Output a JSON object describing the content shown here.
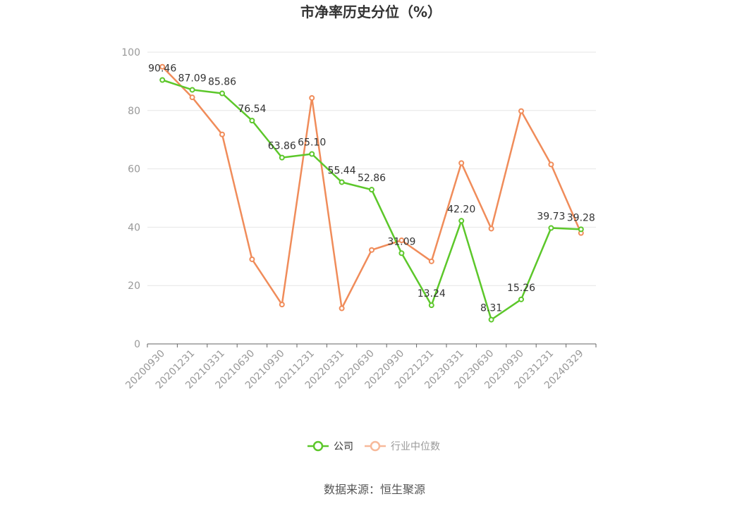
{
  "chart_data": {
    "type": "line",
    "title": "市净率历史分位（%）",
    "source": "数据来源：恒生聚源",
    "categories": [
      "20200930",
      "20201231",
      "20210331",
      "20210630",
      "20210930",
      "20211231",
      "20220331",
      "20220630",
      "20220930",
      "20221231",
      "20230331",
      "20230630",
      "20230930",
      "20231231",
      "20240329"
    ],
    "y_ticks": [
      0,
      20,
      40,
      60,
      80,
      100
    ],
    "ylim": [
      0,
      100
    ],
    "grid": true,
    "legend_position": "bottom",
    "series": [
      {
        "name": "公司",
        "color": "#5cc72a",
        "values": [
          90.46,
          87.09,
          85.86,
          76.54,
          63.86,
          65.1,
          55.44,
          52.86,
          31.09,
          13.24,
          42.2,
          8.31,
          15.26,
          39.73,
          39.28
        ],
        "labels": [
          "90.46",
          "87.09",
          "85.86",
          "76.54",
          "63.86",
          "65.10",
          "55.44",
          "52.86",
          "31.09",
          "13.24",
          "42.20",
          "8.31",
          "15.26",
          "39.73",
          "39.28"
        ]
      },
      {
        "name": "行业中位数",
        "color": "#f08c5a",
        "legend_color": "#f7b99a",
        "values": [
          95.0,
          84.5,
          71.8,
          29.0,
          13.5,
          84.3,
          12.2,
          32.2,
          35.5,
          28.3,
          62.0,
          39.5,
          79.8,
          61.5,
          38.0
        ]
      }
    ]
  }
}
